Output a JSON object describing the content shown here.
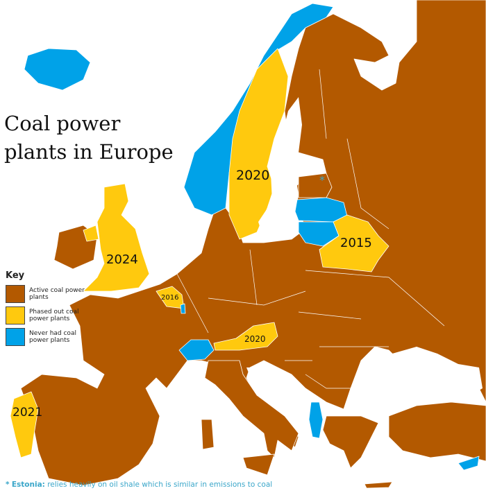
{
  "title": {
    "line1": "Coal power",
    "line2": "plants in Europe"
  },
  "colors": {
    "active": "#b35900",
    "phased_out": "#ffc90e",
    "never": "#00a2e8",
    "sea": "#ffffff",
    "footnote": "#3aa6c9"
  },
  "key": {
    "title": "Key",
    "items": [
      {
        "label": "Active coal power plants",
        "color": "#b35900"
      },
      {
        "label": "Phased out coal power plants",
        "color": "#ffc90e"
      },
      {
        "label": "Never had coal power plants",
        "color": "#00a2e8"
      }
    ]
  },
  "phase_out_labels": {
    "sweden": "2020",
    "belarus": "2015",
    "uk": "2024",
    "belgium": "2016",
    "austria": "2020",
    "portugal": "2021"
  },
  "estonia_marker": "*",
  "footnote": {
    "marker": "*",
    "country": "Estonia:",
    "text": "relies heavily on oil shale which is similar in emissions to coal"
  }
}
